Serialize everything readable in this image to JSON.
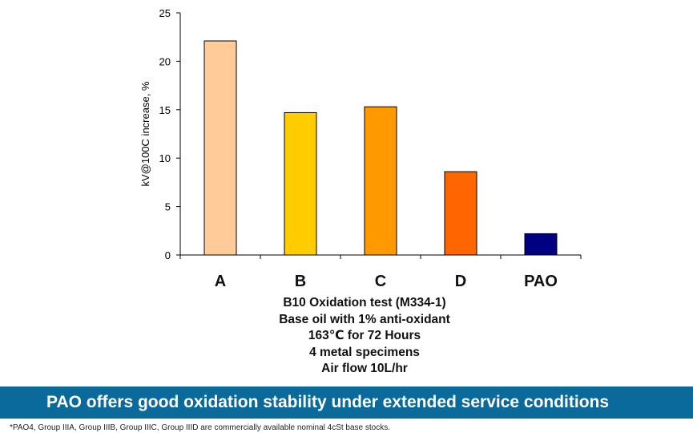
{
  "chart_data": {
    "type": "bar",
    "categories": [
      "A",
      "B",
      "C",
      "D",
      "PAO"
    ],
    "values": [
      22.1,
      14.7,
      15.3,
      8.6,
      2.2
    ],
    "colors": [
      "#ffcc99",
      "#ffcc00",
      "#ff9900",
      "#ff6600",
      "#000080"
    ],
    "ylabel": "kV@100C increase, %",
    "xlabel": "",
    "ylim": [
      0,
      25
    ],
    "yticks": [
      0,
      5,
      10,
      15,
      20,
      25
    ],
    "grid": false,
    "legend": "none"
  },
  "caption": {
    "lines": [
      "B10 Oxidation test (M334-1)",
      "Base oil with 1% anti-oxidant",
      "163℃ for 72 Hours",
      "4 metal specimens",
      "Air flow 10L/hr"
    ]
  },
  "banner": {
    "text": "PAO offers good oxidation stability under extended service conditions",
    "color": "#0a6a99"
  },
  "footnote": "*PAO4, Group IIIA, Group IIIB, Group IIIC, Group IIID are commercially available nominal 4cSt base stocks."
}
